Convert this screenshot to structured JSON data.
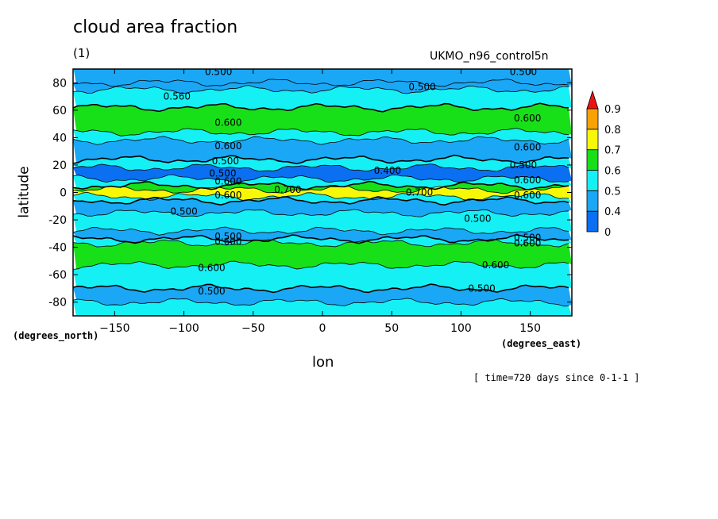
{
  "chart_data": {
    "type": "heatmap",
    "title": "cloud area fraction",
    "units": "(1)",
    "source_label": "UKMO_n96_control5n",
    "xlabel": "lon",
    "ylabel": "latitude",
    "x_unit": "(degrees_east)",
    "y_unit": "(degrees_north)",
    "xlim": [
      -180,
      180
    ],
    "ylim": [
      -90,
      90
    ],
    "x_ticks": [
      -150,
      -100,
      -50,
      0,
      50,
      100,
      150
    ],
    "y_ticks": [
      80,
      60,
      40,
      20,
      0,
      -20,
      -40,
      -60,
      -80
    ],
    "time_note": "[ time=720 days since 0-1-1 ]",
    "colorbar": {
      "levels": [
        "0",
        "0.4",
        "0.5",
        "0.6",
        "0.7",
        "0.8",
        "0.9"
      ],
      "colors": [
        "#0a6ff0",
        "#1aa7f5",
        "#15f0f5",
        "#18e018",
        "#f7f708",
        "#f7a205",
        "#ec1212"
      ]
    },
    "zonal_bands": [
      {
        "lat": [
          80,
          90
        ],
        "value": 0.45
      },
      {
        "lat": [
          75,
          80
        ],
        "value": 0.45
      },
      {
        "lat": [
          62,
          75
        ],
        "value": 0.55
      },
      {
        "lat": [
          44,
          62
        ],
        "value": 0.65
      },
      {
        "lat": [
          38,
          44
        ],
        "value": 0.55
      },
      {
        "lat": [
          24,
          38
        ],
        "value": 0.45
      },
      {
        "lat": [
          18,
          24
        ],
        "value": 0.55
      },
      {
        "lat": [
          10,
          18
        ],
        "value": 0.35
      },
      {
        "lat": [
          5,
          10
        ],
        "value": 0.55
      },
      {
        "lat": [
          2,
          5
        ],
        "value": 0.65
      },
      {
        "lat": [
          -3,
          2
        ],
        "value": 0.75
      },
      {
        "lat": [
          -6,
          -3
        ],
        "value": 0.55
      },
      {
        "lat": [
          -15,
          -6
        ],
        "value": 0.45
      },
      {
        "lat": [
          -28,
          -15
        ],
        "value": 0.55
      },
      {
        "lat": [
          -34,
          -28
        ],
        "value": 0.45
      },
      {
        "lat": [
          -37,
          -34
        ],
        "value": 0.55
      },
      {
        "lat": [
          -53,
          -37
        ],
        "value": 0.65
      },
      {
        "lat": [
          -70,
          -53
        ],
        "value": 0.55
      },
      {
        "lat": [
          -80,
          -70
        ],
        "value": 0.45
      },
      {
        "lat": [
          -90,
          -80
        ],
        "value": 0.55
      }
    ],
    "contour_labels": [
      {
        "text": "0.500",
        "lon": -75,
        "lat": 88
      },
      {
        "text": "0.500",
        "lon": 145,
        "lat": 88
      },
      {
        "text": "0.500",
        "lon": 72,
        "lat": 77
      },
      {
        "text": "0.560",
        "lon": -105,
        "lat": 70
      },
      {
        "text": "0.600",
        "lon": -68,
        "lat": 51
      },
      {
        "text": "0.600",
        "lon": 148,
        "lat": 54
      },
      {
        "text": "0.600",
        "lon": -68,
        "lat": 34
      },
      {
        "text": "0.600",
        "lon": 148,
        "lat": 33
      },
      {
        "text": "0.500",
        "lon": -70,
        "lat": 23
      },
      {
        "text": "0.500",
        "lon": 145,
        "lat": 20
      },
      {
        "text": "0.400",
        "lon": 47,
        "lat": 16
      },
      {
        "text": "0.500",
        "lon": -72,
        "lat": 14
      },
      {
        "text": "0.600",
        "lon": -68,
        "lat": 8
      },
      {
        "text": "0.600",
        "lon": 148,
        "lat": 9
      },
      {
        "text": "0.600",
        "lon": -68,
        "lat": -2
      },
      {
        "text": "0.600",
        "lon": 148,
        "lat": -2
      },
      {
        "text": "0.700",
        "lon": -25,
        "lat": 2
      },
      {
        "text": "0.700",
        "lon": 70,
        "lat": 0
      },
      {
        "text": "0.500",
        "lon": -100,
        "lat": -14
      },
      {
        "text": "0.500",
        "lon": 112,
        "lat": -19
      },
      {
        "text": "0.500",
        "lon": -68,
        "lat": -32
      },
      {
        "text": "0.600",
        "lon": -68,
        "lat": -36
      },
      {
        "text": "0.500",
        "lon": 148,
        "lat": -33
      },
      {
        "text": "0.600",
        "lon": 148,
        "lat": -37
      },
      {
        "text": "0.600",
        "lon": -80,
        "lat": -55
      },
      {
        "text": "0.600",
        "lon": 125,
        "lat": -53
      },
      {
        "text": "0.500",
        "lon": -80,
        "lat": -72
      },
      {
        "text": "0.500",
        "lon": 115,
        "lat": -70
      }
    ]
  }
}
